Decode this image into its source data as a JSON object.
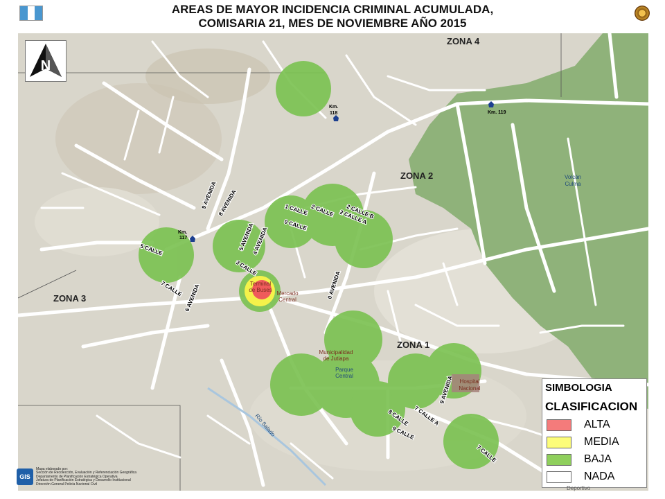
{
  "header": {
    "title_line1": "AREAS DE MAYOR INCIDENCIA CRIMINAL ACUMULADA,",
    "title_line2": "COMISARIA 21, MES DE NOVIEMBRE AÑO 2015",
    "flag_colors": [
      "#4997d0",
      "#ffffff",
      "#4997d0"
    ]
  },
  "north_arrow": {
    "letter": "N"
  },
  "zones": {
    "zona1": "ZONA 1",
    "zona2": "ZONA 2",
    "zona3": "ZONA 3",
    "zona4": "ZONA 4"
  },
  "streets": {
    "av9": "9 AVENIDA",
    "av8": "8 AVENIDA",
    "av5": "5 AVENIDA",
    "av4": "4 AVENIDA",
    "av6": "6 AVENIDA",
    "av0": "0 AVENIDA",
    "av9b": "9 AVENIDA",
    "c1": "1 CALLE",
    "c2": "2 CALLE",
    "c2b": "2 CALLE B",
    "c2a": "2 CALLE A",
    "c0": "0 CALLE",
    "c5": "5 CALLE",
    "c3": "3 CALLE",
    "c7": "7 CALLE",
    "c7a": "7 CALLE A",
    "c8": "8 CALLE",
    "c9": "9 CALLE",
    "c7b": "7 CALLE"
  },
  "landmarks": {
    "terminal": [
      "Terminal",
      "de Buses"
    ],
    "mercado": [
      "Mercado",
      "Central"
    ],
    "municipalidad": [
      "Municipalidad",
      "de Jutiapa"
    ],
    "parque": [
      "Parque",
      "Central"
    ],
    "hospital": [
      "Hospital",
      "Nacional"
    ],
    "volcan": [
      "Volcán",
      "Culma"
    ],
    "rio": "Río Salado"
  },
  "kilometers": {
    "km117": [
      "Km.",
      "117"
    ],
    "km118": [
      "Km.",
      "118"
    ],
    "km119": "Km. 119"
  },
  "legend": {
    "title": "SIMBOLOGIA",
    "subtitle": "CLASIFICACION",
    "items": [
      {
        "label": "ALTA",
        "color": "#f47b7b"
      },
      {
        "label": "MEDIA",
        "color": "#fdfd7a"
      },
      {
        "label": "BAJA",
        "color": "#8fcf5c"
      },
      {
        "label": "NADA",
        "color": "#ffffff"
      }
    ]
  },
  "colors": {
    "baja": "#7cc253",
    "media": "#f5f24a",
    "alta": "#ef5b5b",
    "forest": "#8fb27a",
    "road": "#ffffff",
    "terrain": "#d9d6cb"
  },
  "footer": {
    "logo": "GIS",
    "credits": [
      "Mapa elaborado por:",
      "Sección de Recolección, Evaluación y Referenciación Geográfica",
      "Departamento de Planificación Estratégica Operativa",
      "Jefatura de Planificación Estratégica y Desarrollo Institucional",
      "Dirección General Policía Nacional Civil"
    ],
    "deportivo": "Deportivo"
  }
}
